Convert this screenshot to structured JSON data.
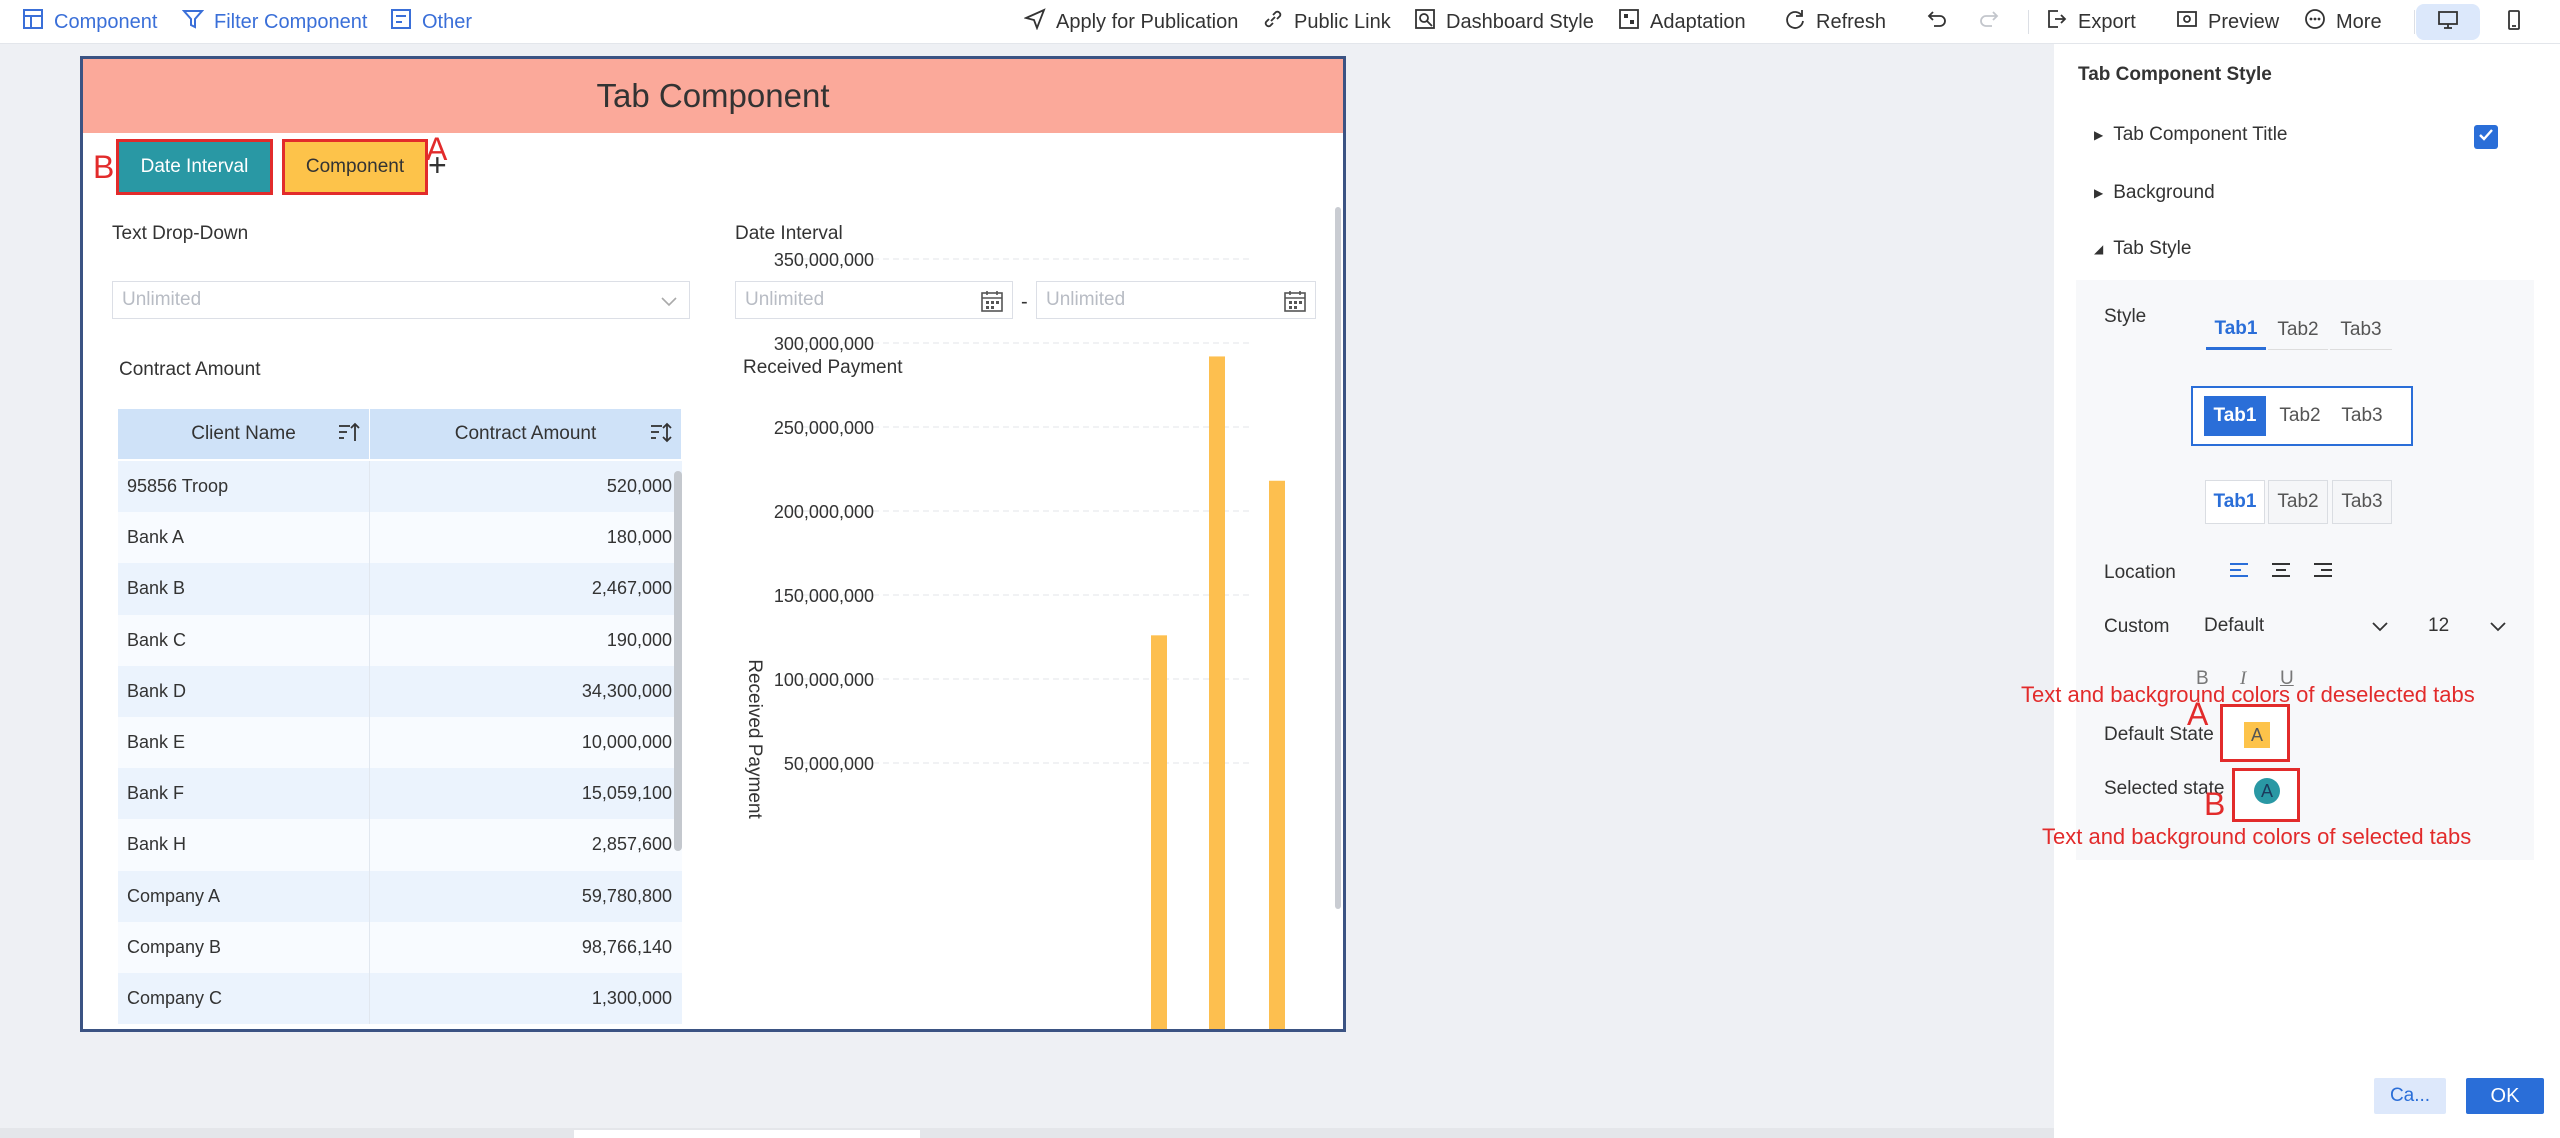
{
  "toolbar": {
    "left": [
      {
        "label": "Component",
        "icon": "component-add-icon"
      },
      {
        "label": "Filter Component",
        "icon": "filter-component-icon"
      },
      {
        "label": "Other",
        "icon": "other-add-icon"
      }
    ],
    "publish": "Apply for Publication",
    "public_link": "Public Link",
    "dashboard_style": "Dashboard Style",
    "adaptation": "Adaptation",
    "refresh": "Refresh",
    "export": "Export",
    "preview": "Preview",
    "more": "More"
  },
  "tab_component": {
    "title": "Tab Component",
    "tabs": [
      {
        "label": "Date Interval",
        "selected": true
      },
      {
        "label": "Component",
        "selected": false
      }
    ],
    "annotation_a": "A",
    "annotation_b": "B"
  },
  "filters": {
    "text_dropdown": {
      "label": "Text Drop-Down",
      "placeholder": "Unlimited"
    },
    "date_interval": {
      "label": "Date Interval",
      "start": "Unlimited",
      "end": "Unlimited",
      "separator": "-"
    }
  },
  "table": {
    "title": "Contract Amount",
    "columns": [
      "Client Name",
      "Contract Amount"
    ],
    "rows": [
      [
        "95856 Troop",
        "520,000"
      ],
      [
        "Bank A",
        "180,000"
      ],
      [
        "Bank B",
        "2,467,000"
      ],
      [
        "Bank C",
        "190,000"
      ],
      [
        "Bank D",
        "34,300,000"
      ],
      [
        "Bank E",
        "10,000,000"
      ],
      [
        "Bank F",
        "15,059,100"
      ],
      [
        "Bank H",
        "2,857,600"
      ],
      [
        "Company A",
        "59,780,800"
      ],
      [
        "Company B",
        "98,766,140"
      ],
      [
        "Company C",
        "1,300,000"
      ]
    ]
  },
  "chart_data": {
    "type": "bar",
    "title": "Received Payment",
    "ylabel": "Received Payment",
    "xlabel": "",
    "ylim": [
      0,
      350000000
    ],
    "yticks": [
      "50,000,000",
      "100,000,000",
      "150,000,000",
      "200,000,000",
      "250,000,000",
      "300,000,000",
      "350,000,000"
    ],
    "ytick_values": [
      50000000,
      100000000,
      150000000,
      200000000,
      250000000,
      300000000,
      350000000
    ],
    "grid": true,
    "color": "#fdbf4f",
    "values": [
      126000000,
      292000000,
      218000000
    ]
  },
  "panel": {
    "title": "Tab Component Style",
    "sections": {
      "tab_title": "Tab Component Title",
      "background": "Background",
      "tab_style": "Tab Style"
    },
    "style_label": "Style",
    "style_tabs": [
      "Tab1",
      "Tab2",
      "Tab3"
    ],
    "location_label": "Location",
    "custom_label": "Custom",
    "font_family": "Default",
    "font_size": "12",
    "format": {
      "bold": "B",
      "italic": "I",
      "underline": "U"
    },
    "default_state_label": "Default State",
    "selected_state_label": "Selected state",
    "swatch_letter": "A",
    "default_swatch_color": "#fdc34a",
    "selected_swatch_color": "#2998a4",
    "annotation_deselected": "Text and background colors of deselected tabs",
    "annotation_selected": "Text and background colors of selected tabs",
    "annotation_a": "A",
    "annotation_b": "B",
    "cancel": "Ca...",
    "ok": "OK"
  },
  "colors": {
    "accent": "#2a6ed8",
    "title_bar": "#fba99a",
    "selected_tab": "#2998a4",
    "deselected_tab": "#fdc34a",
    "annotation_red": "#e22b2b"
  }
}
